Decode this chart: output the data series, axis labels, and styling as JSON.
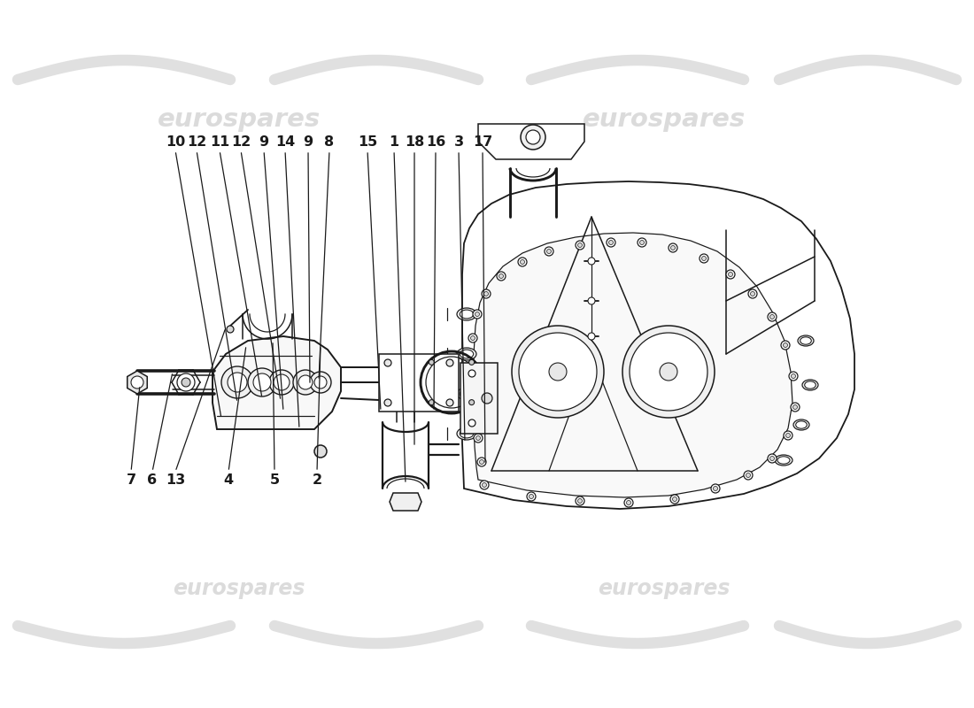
{
  "background_color": "#ffffff",
  "line_color": "#1a1a1a",
  "watermark_text": "eurospares",
  "wm_color": "#d8d8d8",
  "wm_alpha": 0.9,
  "part_labels_top": [
    [
      "10",
      198,
      163
    ],
    [
      "12",
      222,
      163
    ],
    [
      "11",
      248,
      163
    ],
    [
      "12",
      272,
      163
    ],
    [
      "9",
      298,
      163
    ],
    [
      "14",
      322,
      163
    ],
    [
      "9",
      348,
      163
    ],
    [
      "8",
      372,
      163
    ],
    [
      "15",
      415,
      163
    ],
    [
      "1",
      445,
      163
    ],
    [
      "18",
      468,
      163
    ],
    [
      "16",
      492,
      163
    ],
    [
      "3",
      518,
      163
    ],
    [
      "17",
      545,
      163
    ]
  ],
  "part_labels_bot": [
    [
      "7",
      148,
      540
    ],
    [
      "6",
      172,
      540
    ],
    [
      "13",
      198,
      540
    ],
    [
      "4",
      258,
      540
    ],
    [
      "5",
      310,
      540
    ],
    [
      "2",
      358,
      540
    ]
  ]
}
